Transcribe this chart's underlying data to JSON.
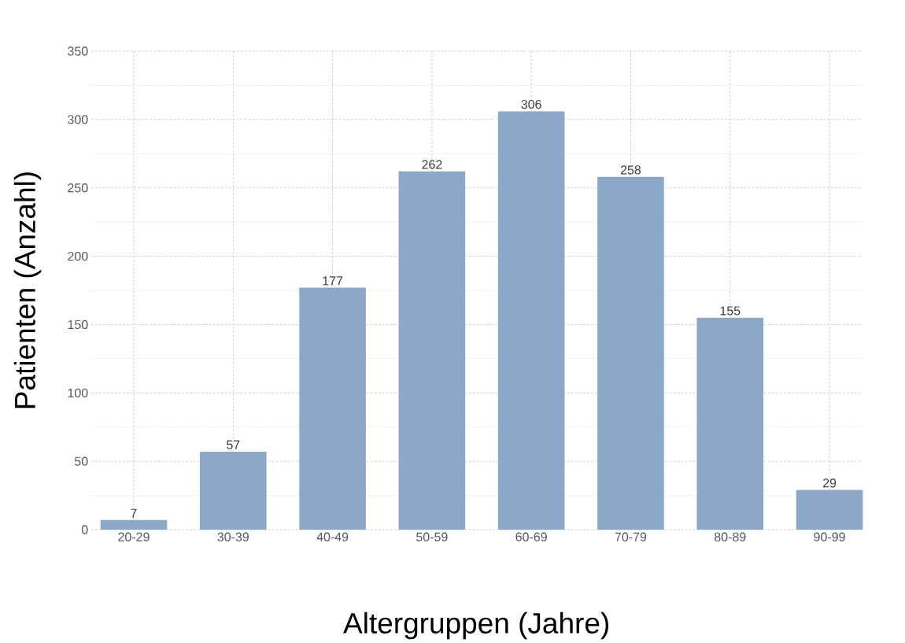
{
  "chart_data": {
    "type": "bar",
    "xlabel": "Altergruppen (Jahre)",
    "ylabel": "Patienten (Anzahl)",
    "categories": [
      "20-29",
      "30-39",
      "40-49",
      "50-59",
      "60-69",
      "70-79",
      "80-89",
      "90-99"
    ],
    "values": [
      7,
      57,
      177,
      262,
      306,
      258,
      155,
      29
    ],
    "color": "#8ba8c9",
    "ylim": [
      0,
      350
    ],
    "yticks": [
      0,
      50,
      100,
      150,
      200,
      250,
      300,
      350
    ],
    "grid": true,
    "data_labels": true
  }
}
